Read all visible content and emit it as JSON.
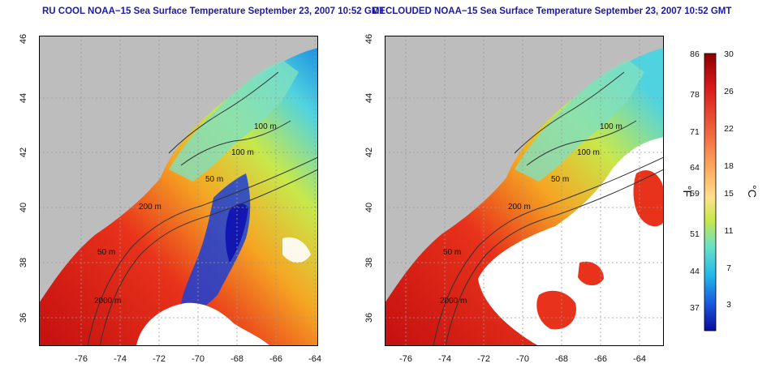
{
  "titles": {
    "left": "RU COOL NOAA−15 Sea Surface Temperature September 23, 2007 10:52 GMT",
    "right": "DECLOUDED NOAA−15 Sea Surface Temperature September 23, 2007 10:52 GMT"
  },
  "map": {
    "lat_ticks": [
      "46",
      "44",
      "42",
      "40",
      "38",
      "36"
    ],
    "lon_ticks": [
      "-76",
      "-74",
      "-72",
      "-70",
      "-68",
      "-66",
      "-64"
    ],
    "contour_labels": [
      "100 m",
      "100 m",
      "50 m",
      "200 m",
      "50 m",
      "2000 m"
    ],
    "colors": {
      "land": "#bdbdbd",
      "cloud": "#ffffff",
      "warm": "#e8321b",
      "hot": "#b80f0f",
      "mid": "#f5a623",
      "cool": "#c8e84a",
      "cold": "#4fd3e0",
      "coldest": "#1a3fd6"
    }
  },
  "colorbar": {
    "fahrenheit_ticks": [
      "86",
      "78",
      "71",
      "64",
      "59",
      "51",
      "44",
      "37"
    ],
    "celsius_ticks": [
      "30",
      "26",
      "22",
      "18",
      "15",
      "11",
      "7",
      "3"
    ],
    "unit_left": "°F",
    "unit_right": "°C"
  }
}
